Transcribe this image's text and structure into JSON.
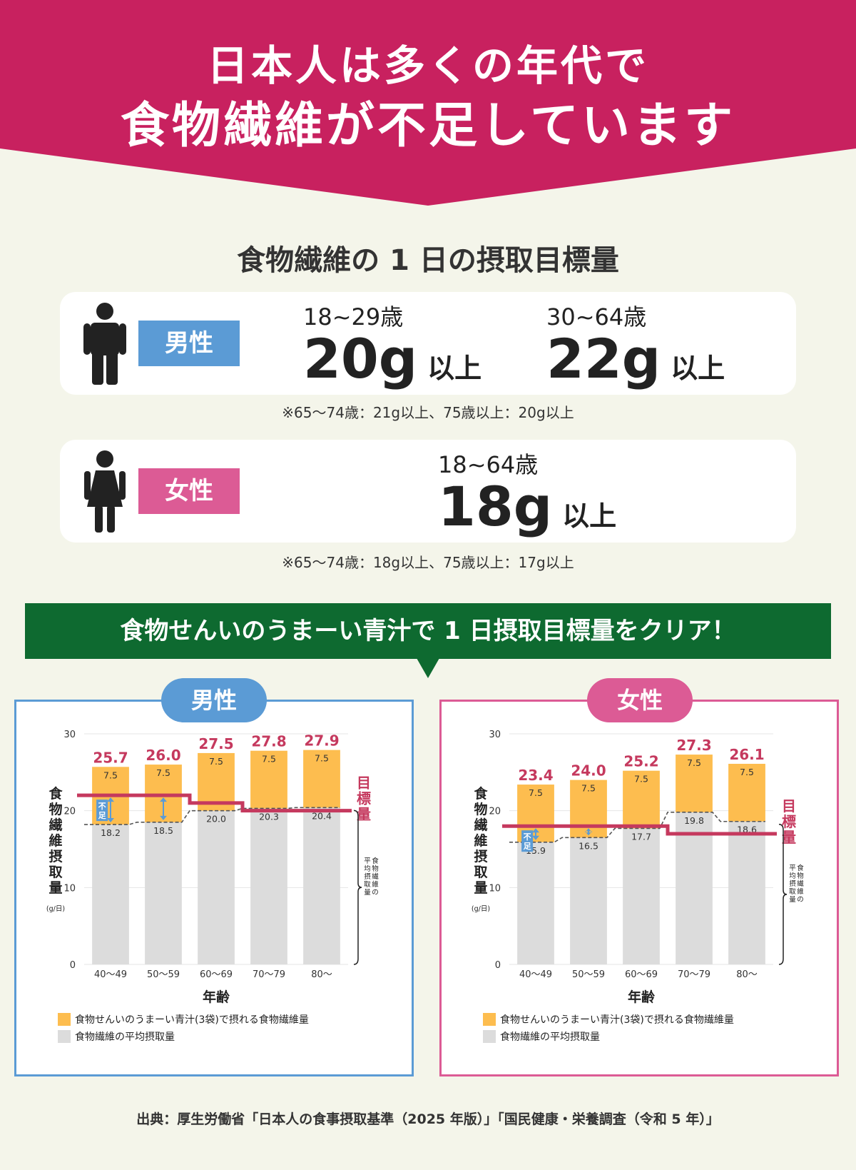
{
  "header": {
    "line1": "日本人は多くの年代で",
    "line2": "食物繊維が不足しています"
  },
  "intake_target": {
    "title": "食物繊維の 1 日の摂取目標量",
    "male": {
      "label": "男性",
      "targets": [
        {
          "age": "18~29歳",
          "amount": "20g",
          "suffix": "以上"
        },
        {
          "age": "30~64歳",
          "amount": "22g",
          "suffix": "以上"
        }
      ],
      "note": "※65～74歳：21g以上、75歳以上：20g以上"
    },
    "female": {
      "label": "女性",
      "targets": [
        {
          "age": "18~64歳",
          "amount": "18g",
          "suffix": "以上"
        }
      ],
      "note": "※65～74歳：18g以上、75歳以上：17g以上"
    }
  },
  "banner": "食物せんいのうまーい青汁で 1 日摂取目標量をクリア！",
  "colors": {
    "header": "#c8215f",
    "banner": "#0e6a30",
    "male": "#5b9bd5",
    "female": "#dc5b95",
    "aojiru_bar": "#fdbd4f",
    "average_bar": "#dcdcdc",
    "target_line": "#c5395e",
    "total_label": "#c5395e",
    "shortage_arrow": "#5b9bd5"
  },
  "chart_data": [
    {
      "type": "bar",
      "stacked": true,
      "panel_label": "男性",
      "categories": [
        "40～49",
        "50～59",
        "60～69",
        "70～79",
        "80～"
      ],
      "series": [
        {
          "name": "食物繊維の平均摂取量",
          "values": [
            18.2,
            18.5,
            20.0,
            20.3,
            20.4
          ]
        },
        {
          "name": "食物せんいのうまーい青汁(3袋)で摂れる食物繊維量",
          "values": [
            7.5,
            7.5,
            7.5,
            7.5,
            7.5
          ]
        }
      ],
      "totals": [
        "25.7",
        "26.0",
        "27.5",
        "27.8",
        "27.9"
      ],
      "target_line": {
        "label": "目標量",
        "values": [
          22,
          22,
          21,
          20,
          20
        ]
      },
      "shortage_label": "不足",
      "brace_label": "食物繊維の平均摂取量",
      "xlabel": "年齢",
      "ylabel": "食物繊維摂取量",
      "yunit": "(g/日)",
      "ylim": [
        0,
        30
      ],
      "yticks": [
        "0",
        "10",
        "20",
        "30"
      ],
      "grid": true
    },
    {
      "type": "bar",
      "stacked": true,
      "panel_label": "女性",
      "categories": [
        "40～49",
        "50～59",
        "60～69",
        "70～79",
        "80～"
      ],
      "series": [
        {
          "name": "食物繊維の平均摂取量",
          "values": [
            15.9,
            16.5,
            17.7,
            19.8,
            18.6
          ]
        },
        {
          "name": "食物せんいのうまーい青汁(3袋)で摂れる食物繊維量",
          "values": [
            7.5,
            7.5,
            7.5,
            7.5,
            7.5
          ]
        }
      ],
      "totals": [
        "23.4",
        "24.0",
        "25.2",
        "27.3",
        "26.1"
      ],
      "target_line": {
        "label": "目標量",
        "values": [
          18,
          18,
          18,
          17,
          17
        ]
      },
      "shortage_label": "不足",
      "brace_label": "食物繊維の平均摂取量",
      "xlabel": "年齢",
      "ylabel": "食物繊維摂取量",
      "yunit": "(g/日)",
      "ylim": [
        0,
        30
      ],
      "yticks": [
        "0",
        "10",
        "20",
        "30"
      ],
      "grid": true
    }
  ],
  "source": "出典：厚生労働省「日本人の食事摂取基準（2025 年版）」「国民健康・栄養調査（令和 5 年）」"
}
